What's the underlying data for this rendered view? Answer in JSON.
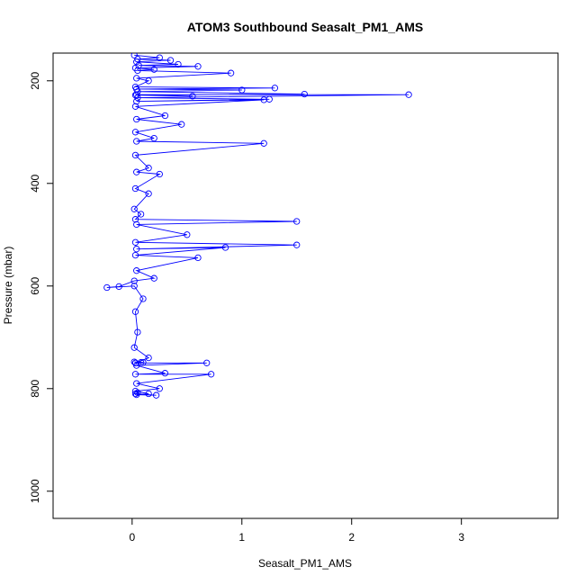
{
  "chart_data": {
    "type": "line",
    "title": "ATOM3 Southbound Seasalt_PM1_AMS",
    "xlabel": "Seasalt_PM1_AMS",
    "ylabel": "Pressure (mbar)",
    "xlim": [
      -0.72,
      3.88
    ],
    "ylim": [
      1053,
      146
    ],
    "y_reversed": true,
    "x_ticks": [
      0,
      1,
      2,
      3
    ],
    "y_ticks": [
      200,
      400,
      600,
      800,
      1000
    ],
    "grid": false,
    "legend": "none",
    "series_color": "#0000ff",
    "marker": "open-circle",
    "series": [
      {
        "x": [
          0.02,
          0.25,
          0.05,
          0.35,
          0.04,
          0.42,
          0.06,
          0.6,
          0.03,
          0.2,
          0.05,
          0.9,
          0.04,
          0.15,
          0.03,
          1.3,
          0.04,
          1.0,
          0.05,
          1.57,
          0.03,
          0.55,
          0.04,
          2.52,
          0.05,
          1.25,
          0.04,
          1.2,
          0.03,
          0.3,
          0.04,
          0.45,
          0.03,
          0.2,
          0.04,
          1.2,
          0.03,
          0.15,
          0.04,
          0.25,
          0.03,
          0.15,
          0.02,
          0.08,
          0.03,
          1.5,
          0.04,
          0.5,
          0.03,
          1.5,
          0.04,
          0.85,
          0.03,
          0.6,
          0.04,
          0.2,
          0.02,
          -0.12,
          -0.23,
          0.02,
          0.1,
          0.03,
          0.05,
          0.02,
          0.15,
          0.03,
          0.08,
          0.02,
          0.1,
          0.03,
          0.68,
          0.04,
          0.3,
          0.03,
          0.72,
          0.04,
          0.25,
          0.03,
          0.15,
          0.04,
          0.22,
          0.03,
          0.05
        ],
        "y": [
          150,
          155,
          158,
          160,
          163,
          168,
          170,
          172,
          175,
          178,
          180,
          185,
          195,
          200,
          212,
          214,
          216,
          218,
          221,
          226,
          228,
          230,
          227,
          227,
          233,
          236,
          240,
          237,
          250,
          268,
          275,
          285,
          300,
          312,
          318,
          322,
          345,
          370,
          378,
          382,
          410,
          420,
          450,
          460,
          470,
          474,
          480,
          500,
          515,
          520,
          528,
          525,
          540,
          545,
          570,
          585,
          590,
          601,
          603,
          600,
          625,
          650,
          690,
          720,
          740,
          750,
          749,
          748,
          749,
          750,
          750,
          755,
          770,
          772,
          772,
          790,
          800,
          805,
          810,
          812,
          813,
          810,
          808
        ]
      }
    ]
  }
}
